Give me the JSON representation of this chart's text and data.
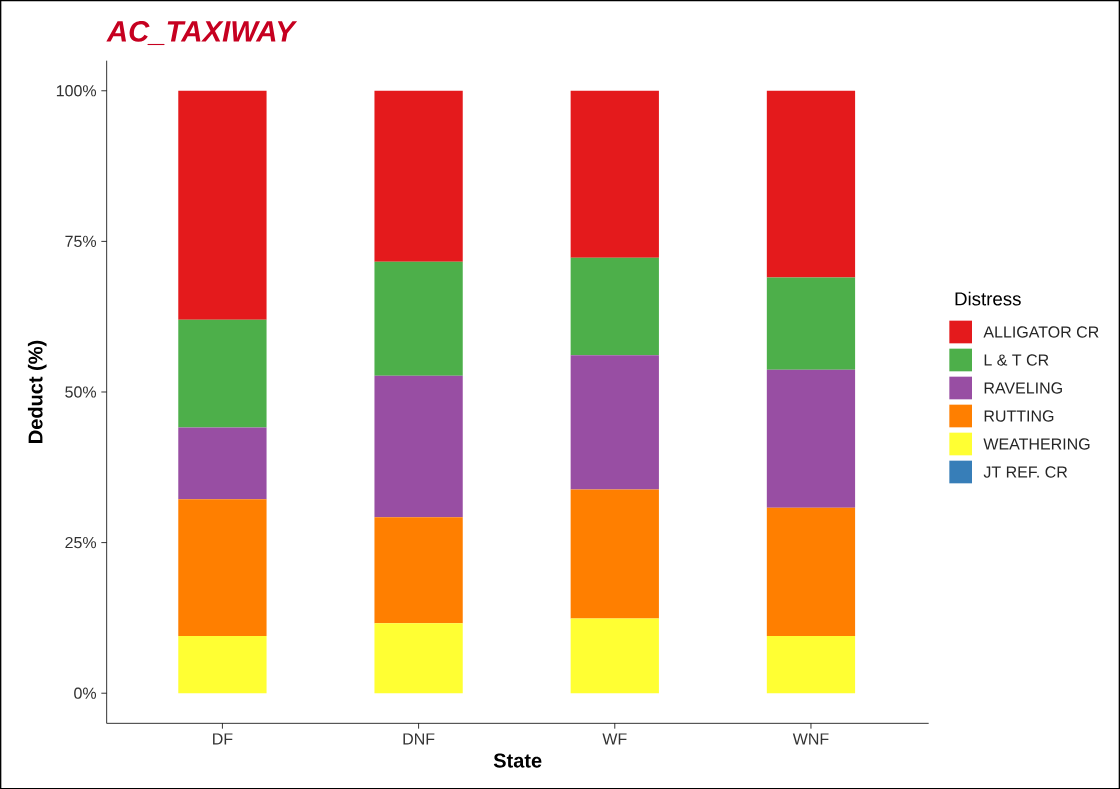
{
  "chart_data": {
    "type": "bar",
    "title": "AC_TAXIWAY",
    "xlabel": "State",
    "ylabel": "Deduct (%)",
    "legend_title": "Distress",
    "stacked": true,
    "legend": "right",
    "grid": false,
    "categories": [
      "DF",
      "DNF",
      "WF",
      "WNF"
    ],
    "ylim": [
      -5,
      105
    ],
    "yticks": [
      {
        "value": 0,
        "label": "0%"
      },
      {
        "value": 25,
        "label": "25%"
      },
      {
        "value": 50,
        "label": "50%"
      },
      {
        "value": 75,
        "label": "75%"
      },
      {
        "value": 100,
        "label": "100%"
      }
    ],
    "series": [
      {
        "name": "JT REF. CR",
        "color": "#377eb8",
        "values": [
          0,
          0,
          0,
          0
        ]
      },
      {
        "name": "WEATHERING",
        "color": "#ffff33",
        "values": [
          9.5,
          11.6,
          12.4,
          9.5
        ]
      },
      {
        "name": "RUTTING",
        "color": "#ff7f00",
        "values": [
          22.7,
          17.6,
          21.4,
          21.3
        ]
      },
      {
        "name": "RAVELING",
        "color": "#984ea3",
        "values": [
          11.9,
          23.5,
          22.3,
          22.9
        ]
      },
      {
        "name": "L & T CR",
        "color": "#4daf4a",
        "values": [
          17.9,
          18.9,
          16.2,
          15.3
        ]
      },
      {
        "name": "ALLIGATOR CR",
        "color": "#e41a1c",
        "values": [
          38.0,
          28.4,
          27.7,
          31.0
        ]
      }
    ]
  }
}
